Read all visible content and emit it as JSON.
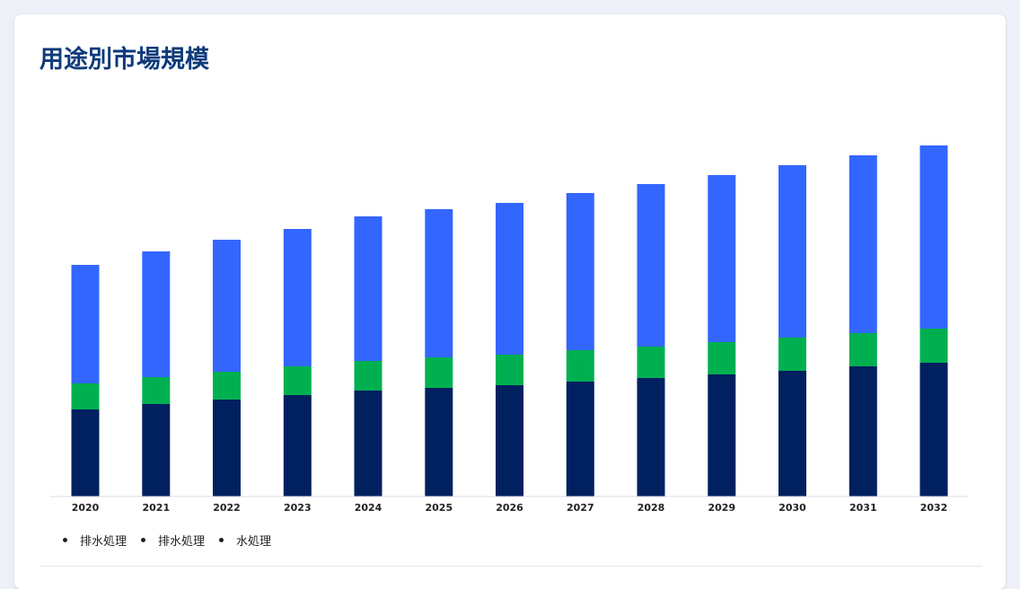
{
  "title": "用途別市場規模",
  "chart_data": {
    "type": "bar",
    "stacked": true,
    "categories": [
      "2020",
      "2021",
      "2022",
      "2023",
      "2024",
      "2025",
      "2026",
      "2027",
      "2028",
      "2029",
      "2030",
      "2031",
      "2032"
    ],
    "series": [
      {
        "name": "排水処理",
        "color": "#00205f",
        "values": [
          97,
          103,
          108,
          113,
          118,
          121,
          124,
          128,
          132,
          136,
          140,
          145,
          149
        ]
      },
      {
        "name": "排水処理",
        "color": "#00b050",
        "values": [
          29,
          30,
          31,
          32,
          33,
          34,
          34,
          35,
          35,
          36,
          37,
          37,
          38
        ]
      },
      {
        "name": "水処理",
        "color": "#3366ff",
        "values": [
          132,
          140,
          147,
          153,
          161,
          165,
          169,
          175,
          181,
          186,
          192,
          198,
          204
        ]
      }
    ],
    "ylim": [
      0,
      400
    ],
    "grid": false,
    "legend_position": "bottom-left"
  }
}
